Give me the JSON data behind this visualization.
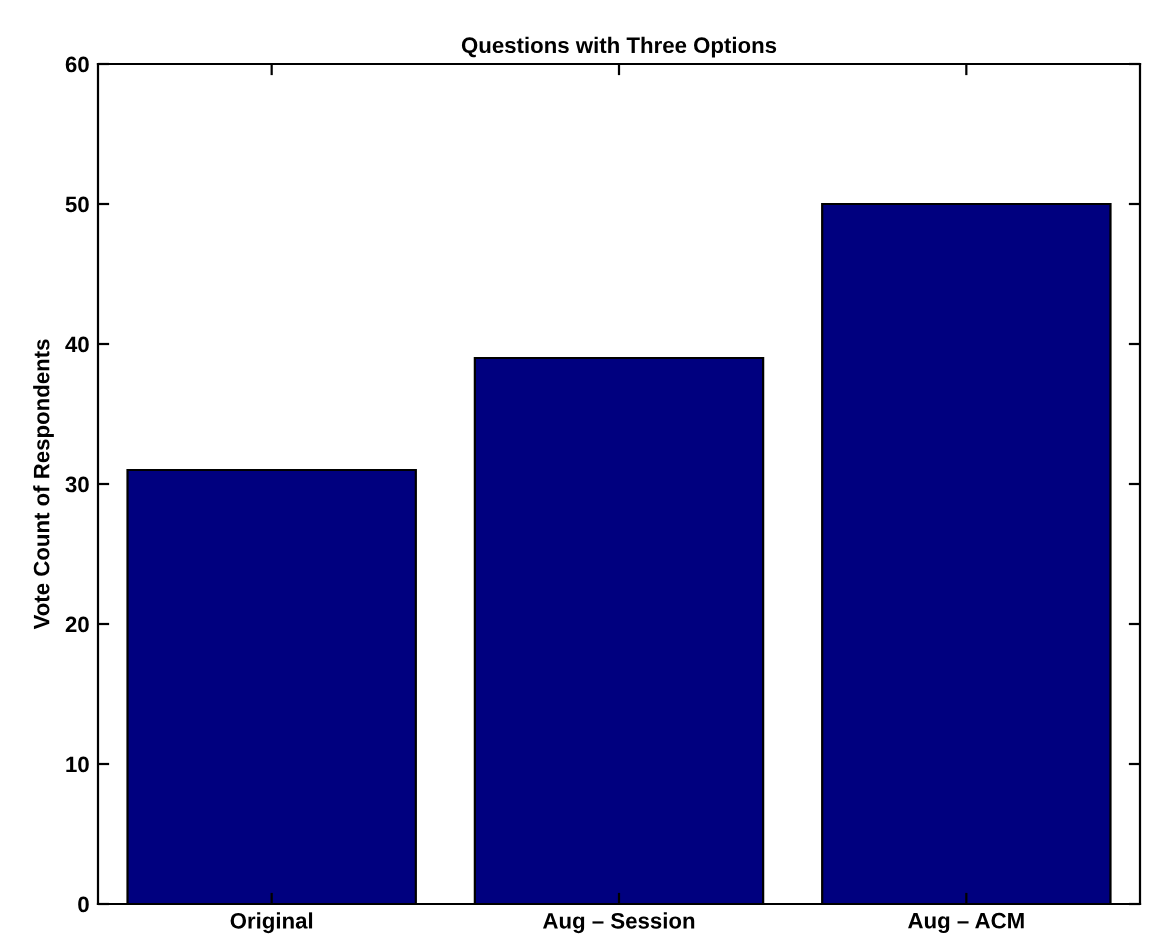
{
  "chart_data": {
    "type": "bar",
    "title": "Questions with Three Options",
    "ylabel": "Vote Count of Respondents",
    "categories": [
      "Original",
      "Aug – Session",
      "Aug – ACM"
    ],
    "values": [
      31,
      39,
      50
    ],
    "color": "#00007f",
    "ylim": [
      0,
      60
    ],
    "yticks": [
      0,
      10,
      20,
      30,
      40,
      50,
      60
    ],
    "grid": false
  }
}
